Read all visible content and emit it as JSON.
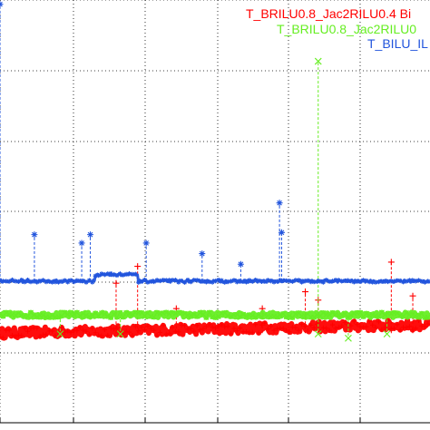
{
  "chart_data": {
    "type": "line",
    "xlim": [
      0,
      1
    ],
    "ylim": [
      0,
      1
    ],
    "grid": true,
    "grid_style": "dotted",
    "legend_placement": "top-right",
    "series": [
      {
        "name": "T_BRILU0.8_Jac2RILU0.4 Bi",
        "color": "#ff0000",
        "marker": "plus",
        "baseline": 0.212,
        "noise": 0.012,
        "spikes": [
          {
            "x": 0.27,
            "y": 0.33
          },
          {
            "x": 0.32,
            "y": 0.37
          },
          {
            "x": 0.41,
            "y": 0.27
          },
          {
            "x": 0.61,
            "y": 0.27
          },
          {
            "x": 0.71,
            "y": 0.31
          },
          {
            "x": 0.74,
            "y": 0.29
          },
          {
            "x": 0.91,
            "y": 0.38
          },
          {
            "x": 0.96,
            "y": 0.3
          }
        ]
      },
      {
        "name": "T_BRILU0.8_Jac2RILU0",
        "color": "#66ee22",
        "marker": "x",
        "baseline": 0.255,
        "noise": 0.006,
        "spikes": [
          {
            "x": 0.74,
            "y": 0.855
          },
          {
            "x": 0.14,
            "y": 0.21
          },
          {
            "x": 0.28,
            "y": 0.21
          },
          {
            "x": 0.74,
            "y": 0.21
          },
          {
            "x": 0.81,
            "y": 0.2
          },
          {
            "x": 0.9,
            "y": 0.21
          }
        ]
      },
      {
        "name": "T_BILU_IL",
        "color": "#2255dd",
        "marker": "asterisk",
        "baseline": 0.335,
        "noise": 0.003,
        "spikes": [
          {
            "x": 0.0,
            "y": 0.99
          },
          {
            "x": 0.08,
            "y": 0.445
          },
          {
            "x": 0.19,
            "y": 0.425
          },
          {
            "x": 0.21,
            "y": 0.445
          },
          {
            "x": 0.34,
            "y": 0.425
          },
          {
            "x": 0.47,
            "y": 0.4
          },
          {
            "x": 0.56,
            "y": 0.375
          },
          {
            "x": 0.65,
            "y": 0.52
          },
          {
            "x": 0.655,
            "y": 0.45
          }
        ],
        "step": {
          "from": 0.22,
          "to": 0.32,
          "y": 0.35
        }
      }
    ],
    "legend": [
      "T_BRILU0.8_Jac2RILU0.4 Bi",
      "T_BRILU0.8_Jac2RILU0",
      "T_BILU_IL"
    ]
  }
}
